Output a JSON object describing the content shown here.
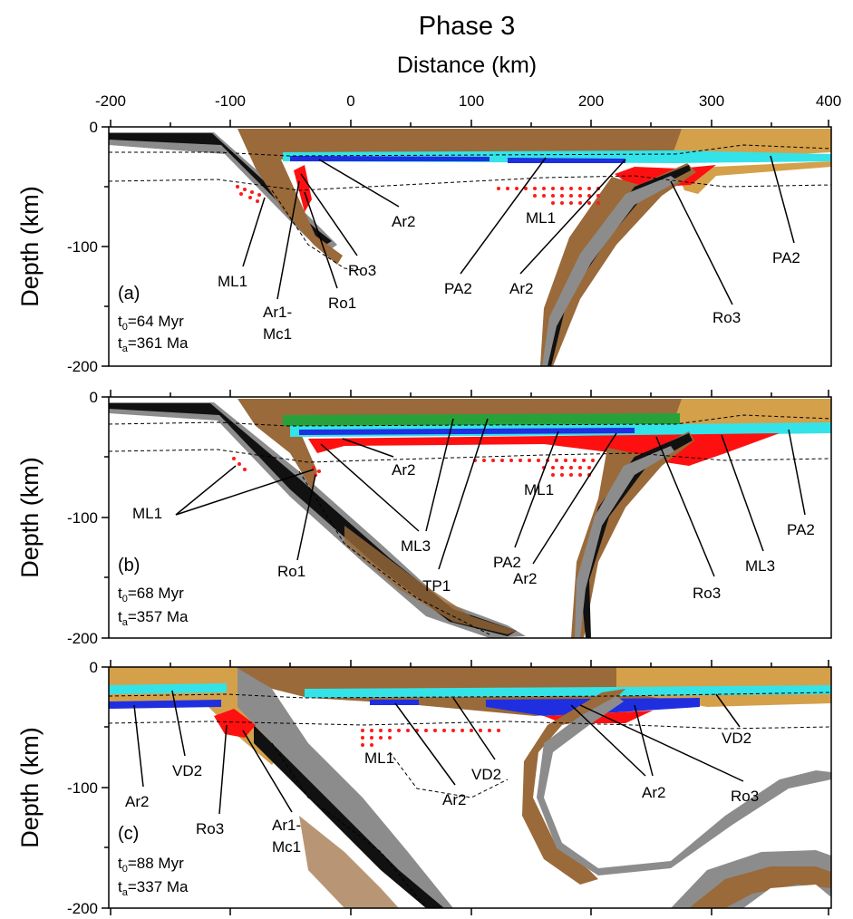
{
  "figure": {
    "title": "Phase 3",
    "x_axis_label": "Distance (km)",
    "y_axis_label": "Depth (km)",
    "x_ticks": [
      "-200",
      "-100",
      "0",
      "100",
      "200",
      "300",
      "400"
    ],
    "y_ticks": [
      "0",
      "-100",
      "-200"
    ]
  },
  "panels": [
    {
      "id": "a",
      "letter": "(a)",
      "t0_prefix": "t",
      "t0_sub": "0",
      "t0_value": "=64 Myr",
      "ta_prefix": "t",
      "ta_sub": "a",
      "ta_value": "=361 Ma",
      "labels": [
        "ML1",
        "Ar1-",
        "Mc1",
        "Ro1",
        "Ro3",
        "Ar2",
        "PA2",
        "ML1",
        "Ar2",
        "Ro3",
        "PA2"
      ]
    },
    {
      "id": "b",
      "letter": "(b)",
      "t0_prefix": "t",
      "t0_sub": "0",
      "t0_value": "=68 Myr",
      "ta_prefix": "t",
      "ta_sub": "a",
      "ta_value": "=357 Ma",
      "labels": [
        "ML1",
        "Ro1",
        "Ar2",
        "ML3",
        "TP1",
        "PA2",
        "ML1",
        "Ar2",
        "Ro3",
        "ML3",
        "PA2"
      ]
    },
    {
      "id": "c",
      "letter": "(c)",
      "t0_prefix": "t",
      "t0_sub": "0",
      "t0_value": "=88 Myr",
      "ta_prefix": "t",
      "ta_sub": "a",
      "ta_value": "=337 Ma",
      "labels": [
        "Ar2",
        "VD2",
        "Ro3",
        "Ar1-",
        "Mc1",
        "ML1",
        "Ar2",
        "VD2",
        "Ar2",
        "Ro3",
        "VD2"
      ]
    }
  ],
  "colors": {
    "crust_brown": "#9a6a3a",
    "ochre": "#d4a04a",
    "cyan": "#33e3e8",
    "blue": "#1f2fe0",
    "red": "#ff1010",
    "green": "#27a23a",
    "grey": "#8c8c8c",
    "black": "#111111"
  }
}
